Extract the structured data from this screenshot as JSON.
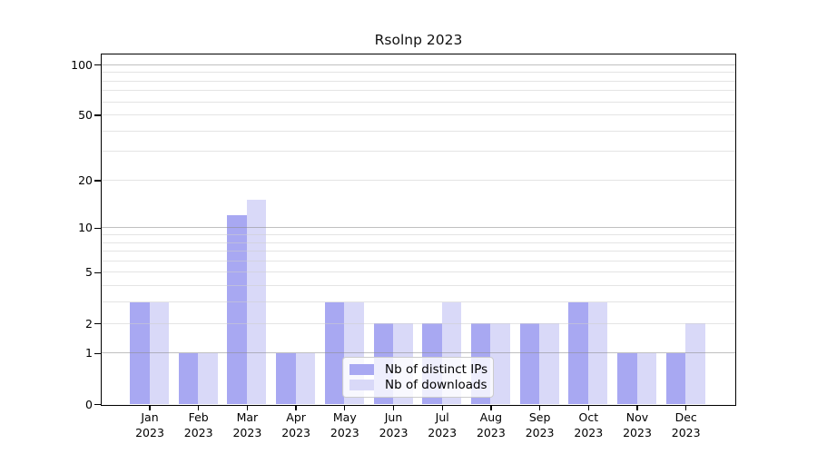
{
  "chart_data": {
    "type": "bar",
    "title": "Rsolnp 2023",
    "year": "2023",
    "months": [
      "Jan",
      "Feb",
      "Mar",
      "Apr",
      "May",
      "Jun",
      "Jul",
      "Aug",
      "Sep",
      "Oct",
      "Nov",
      "Dec"
    ],
    "categories": [
      "Jan 2023",
      "Feb 2023",
      "Mar 2023",
      "Apr 2023",
      "May 2023",
      "Jun 2023",
      "Jul 2023",
      "Aug 2023",
      "Sep 2023",
      "Oct 2023",
      "Nov 2023",
      "Dec 2023"
    ],
    "series": [
      {
        "name": "Nb of distinct IPs",
        "color": "#a8a8f2",
        "values": [
          3,
          1,
          12,
          1,
          3,
          2,
          2,
          2,
          2,
          3,
          1,
          1
        ]
      },
      {
        "name": "Nb of downloads",
        "color": "#d9d9f8",
        "values": [
          3,
          1,
          15,
          1,
          3,
          2,
          3,
          2,
          2,
          3,
          1,
          2
        ]
      }
    ],
    "y_axis": {
      "scale": "log1p",
      "ylim": [
        0,
        115
      ],
      "tick_labels": [
        0,
        1,
        2,
        5,
        10,
        20,
        50,
        100
      ],
      "gridlines": [
        1,
        2,
        3,
        4,
        5,
        6,
        7,
        8,
        9,
        10,
        20,
        30,
        40,
        50,
        60,
        70,
        80,
        90,
        100
      ],
      "major_gridlines": [
        1,
        10,
        100
      ]
    },
    "x_axis": {
      "label_year": "2023"
    },
    "legend": {
      "position": "bottom-center",
      "entries": [
        "Nb of distinct IPs",
        "Nb of downloads"
      ]
    },
    "grid_color_major": "#b4b4b4",
    "grid_color_minor": "#e4e4e4"
  }
}
